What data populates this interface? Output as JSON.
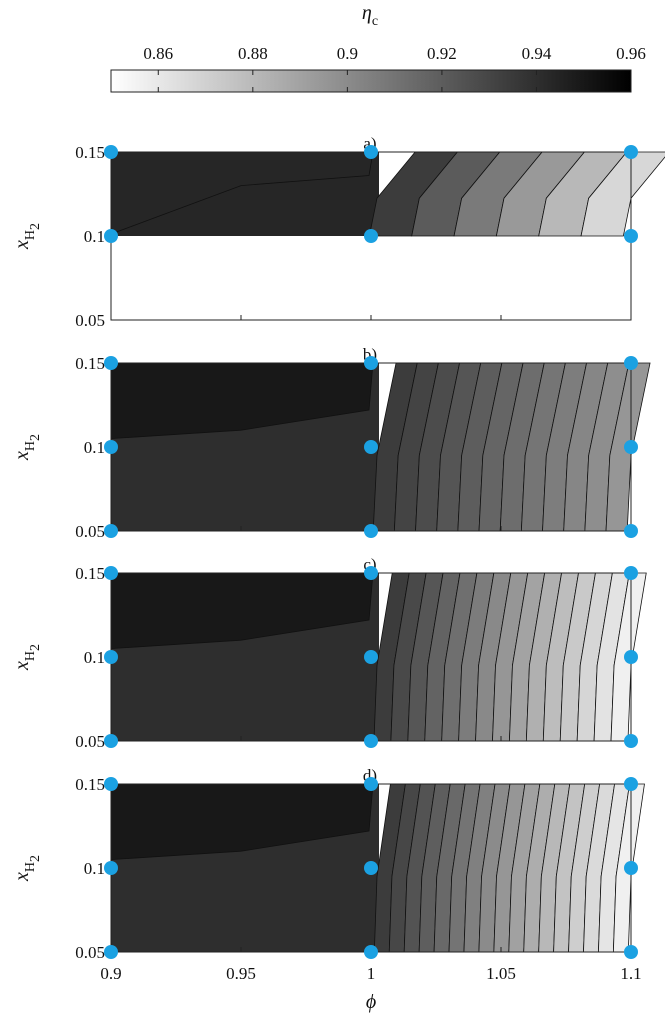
{
  "chart_data": {
    "type": "contour",
    "colorbar": {
      "label": "η_c",
      "label_symbol": "η",
      "label_subscript": "c",
      "ticks": [
        "0.86",
        "0.88",
        "0.9",
        "0.92",
        "0.94",
        "0.96"
      ],
      "range": [
        0.85,
        0.96
      ],
      "colormap": "white-to-black grayscale",
      "placement": "top"
    },
    "shared_x": {
      "label": "ϕ",
      "ticks": [
        "0.9",
        "0.95",
        "1",
        "1.05",
        "1.1"
      ],
      "range": [
        0.9,
        1.1
      ]
    },
    "panels": [
      {
        "label": "a)",
        "y_label": "x_H2",
        "y_ticks": [
          "0.15",
          "0.1",
          "0.05"
        ],
        "y_range": [
          0.05,
          0.15
        ],
        "sample_points": [
          [
            0.9,
            0.15
          ],
          [
            1.0,
            0.15
          ],
          [
            1.1,
            0.15
          ],
          [
            0.9,
            0.1
          ],
          [
            1.0,
            0.1
          ],
          [
            1.1,
            0.1
          ]
        ],
        "contour_levels": 6,
        "filled_region": "x_H2 0.1 to 0.15",
        "efficiency_range": [
          0.86,
          0.95
        ]
      },
      {
        "label": "b)",
        "y_label": "x_H2",
        "y_ticks": [
          "0.15",
          "0.1",
          "0.05"
        ],
        "y_range": [
          0.05,
          0.15
        ],
        "sample_points": [
          [
            0.9,
            0.15
          ],
          [
            1.0,
            0.15
          ],
          [
            1.1,
            0.15
          ],
          [
            0.9,
            0.1
          ],
          [
            1.0,
            0.1
          ],
          [
            1.1,
            0.1
          ],
          [
            0.9,
            0.05
          ],
          [
            1.0,
            0.05
          ],
          [
            1.1,
            0.05
          ]
        ],
        "contour_levels": 12,
        "efficiency_range": [
          0.905,
          0.955
        ]
      },
      {
        "label": "c)",
        "y_label": "x_H2",
        "y_ticks": [
          "0.15",
          "0.1",
          "0.05"
        ],
        "y_range": [
          0.05,
          0.15
        ],
        "sample_points": [
          [
            0.9,
            0.15
          ],
          [
            1.0,
            0.15
          ],
          [
            1.1,
            0.15
          ],
          [
            0.9,
            0.1
          ],
          [
            1.0,
            0.1
          ],
          [
            1.1,
            0.1
          ],
          [
            0.9,
            0.05
          ],
          [
            1.0,
            0.05
          ],
          [
            1.1,
            0.05
          ]
        ],
        "contour_levels": 15,
        "efficiency_range": [
          0.87,
          0.955
        ]
      },
      {
        "label": "d)",
        "y_label": "x_H2",
        "y_ticks": [
          "0.15",
          "0.1",
          "0.05"
        ],
        "y_range": [
          0.05,
          0.15
        ],
        "sample_points": [
          [
            0.9,
            0.15
          ],
          [
            1.0,
            0.15
          ],
          [
            1.1,
            0.15
          ],
          [
            0.9,
            0.1
          ],
          [
            1.0,
            0.1
          ],
          [
            1.1,
            0.1
          ],
          [
            0.9,
            0.05
          ],
          [
            1.0,
            0.05
          ],
          [
            1.1,
            0.05
          ]
        ],
        "contour_levels": 17,
        "efficiency_range": [
          0.86,
          0.955
        ]
      }
    ],
    "marker_color": "#1ba1e2"
  }
}
